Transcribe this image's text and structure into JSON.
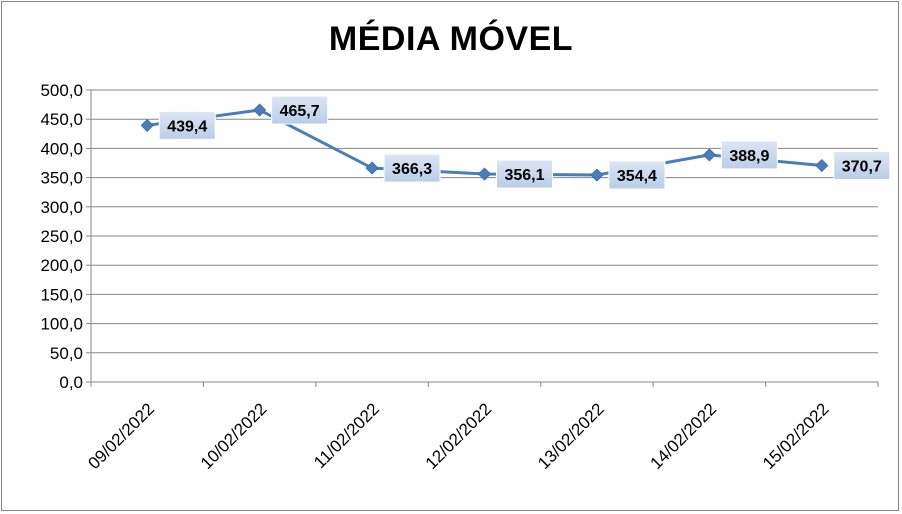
{
  "chart_data": {
    "type": "line",
    "title": "MÉDIA MÓVEL",
    "categories": [
      "09/02/2022",
      "10/02/2022",
      "11/02/2022",
      "12/02/2022",
      "13/02/2022",
      "14/02/2022",
      "15/02/2022"
    ],
    "series": [
      {
        "values": [
          439.4,
          465.7,
          366.3,
          356.1,
          354.4,
          388.9,
          370.7
        ],
        "data_labels": [
          "439,4",
          "465,7",
          "366,3",
          "356,1",
          "354,4",
          "388,9",
          "370,7"
        ],
        "color": "#4A7EBB"
      }
    ],
    "ylim": [
      0,
      500
    ],
    "y_ticks": [
      0,
      50,
      100,
      150,
      200,
      250,
      300,
      350,
      400,
      450,
      500
    ],
    "y_tick_labels": [
      "0,0",
      "50,0",
      "100,0",
      "150,0",
      "200,0",
      "250,0",
      "300,0",
      "350,0",
      "400,0",
      "450,0",
      "500,0"
    ],
    "xlabel": "",
    "ylabel": "",
    "grid": true,
    "legend": "none",
    "colors": {
      "line": "#4A7EBB",
      "gridline": "#868686",
      "label_box_top": "#DCE6F4",
      "label_box_bottom": "#B9CDE8"
    }
  }
}
